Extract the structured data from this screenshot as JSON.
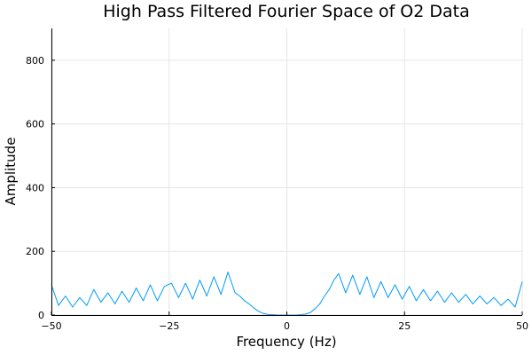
{
  "chart_data": {
    "type": "line",
    "title": "High Pass Filtered Fourier Space of O2 Data",
    "xlabel": "Frequency (Hz)",
    "ylabel": "Amplitude",
    "xlim": [
      -50,
      50
    ],
    "ylim": [
      0,
      900
    ],
    "xticks": [
      -50,
      -25,
      0,
      25,
      50
    ],
    "xtick_labels": [
      "−50",
      "−25",
      "0",
      "25",
      "50"
    ],
    "yticks": [
      0,
      200,
      400,
      600,
      800
    ],
    "ytick_labels": [
      "0",
      "200",
      "400",
      "600",
      "800"
    ],
    "grid": true,
    "legend": "none",
    "series": [
      {
        "color": "#009af9",
        "x": [
          -50,
          -48.5,
          -47,
          -45.5,
          -44,
          -42.5,
          -41,
          -39.5,
          -38,
          -36.5,
          -35,
          -33.5,
          -32,
          -30.5,
          -29,
          -27.5,
          -26,
          -24.5,
          -23,
          -21.5,
          -20,
          -18.5,
          -17,
          -15.5,
          -14,
          -12.5,
          -11,
          -10,
          -9,
          -8,
          -7,
          -6,
          -5,
          -4,
          -3,
          -2,
          -1,
          0,
          1,
          2,
          3,
          4,
          5,
          6,
          7,
          8,
          9,
          10,
          11,
          12.5,
          14,
          15.5,
          17,
          18.5,
          20,
          21.5,
          23,
          24.5,
          26,
          27.5,
          29,
          30.5,
          32,
          33.5,
          35,
          36.5,
          38,
          39.5,
          41,
          42.5,
          44,
          45.5,
          47,
          48.5,
          50
        ],
        "y": [
          95,
          30,
          60,
          25,
          55,
          30,
          80,
          40,
          70,
          35,
          75,
          40,
          85,
          45,
          95,
          45,
          90,
          100,
          55,
          100,
          50,
          110,
          60,
          120,
          65,
          135,
          70,
          60,
          45,
          35,
          22,
          12,
          5,
          2,
          1,
          0,
          0,
          0,
          0,
          0,
          1,
          3,
          8,
          20,
          35,
          60,
          80,
          110,
          130,
          70,
          125,
          65,
          120,
          55,
          105,
          55,
          95,
          50,
          90,
          45,
          80,
          45,
          75,
          40,
          70,
          40,
          65,
          35,
          60,
          35,
          55,
          30,
          50,
          25,
          105
        ]
      }
    ]
  }
}
